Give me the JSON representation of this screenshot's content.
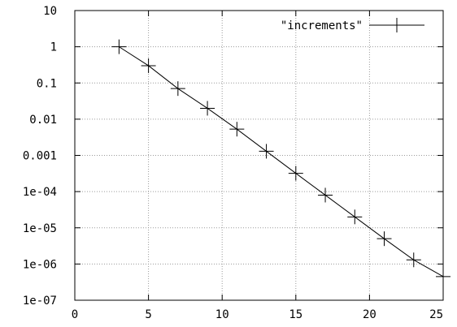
{
  "chart_data": {
    "type": "line",
    "title": "",
    "xlabel": "",
    "ylabel": "",
    "xlim": [
      0,
      25
    ],
    "ylim": [
      1e-07,
      10
    ],
    "yscale": "log",
    "grid": true,
    "legend_position": "top-right",
    "x_ticks": [
      {
        "value": 0,
        "label": "0"
      },
      {
        "value": 5,
        "label": "5"
      },
      {
        "value": 10,
        "label": "10"
      },
      {
        "value": 15,
        "label": "15"
      },
      {
        "value": 20,
        "label": "20"
      },
      {
        "value": 25,
        "label": "25"
      }
    ],
    "y_ticks": [
      {
        "value": 10,
        "label": "10"
      },
      {
        "value": 1,
        "label": "1"
      },
      {
        "value": 0.1,
        "label": "0.1"
      },
      {
        "value": 0.01,
        "label": "0.01"
      },
      {
        "value": 0.001,
        "label": "0.001"
      },
      {
        "value": 0.0001,
        "label": "1e-04"
      },
      {
        "value": 1e-05,
        "label": "1e-05"
      },
      {
        "value": 1e-06,
        "label": "1e-06"
      },
      {
        "value": 1e-07,
        "label": "1e-07"
      }
    ],
    "series": [
      {
        "name": "\"increments\"",
        "color": "#000000",
        "marker": "plus",
        "x": [
          3,
          5,
          7,
          9,
          11,
          13,
          15,
          17,
          19,
          21,
          23,
          25
        ],
        "y": [
          1.0,
          0.3,
          0.07,
          0.02,
          0.0053,
          0.0013,
          0.00032,
          8e-05,
          2e-05,
          5e-06,
          1.3e-06,
          4.5e-07
        ]
      }
    ]
  }
}
